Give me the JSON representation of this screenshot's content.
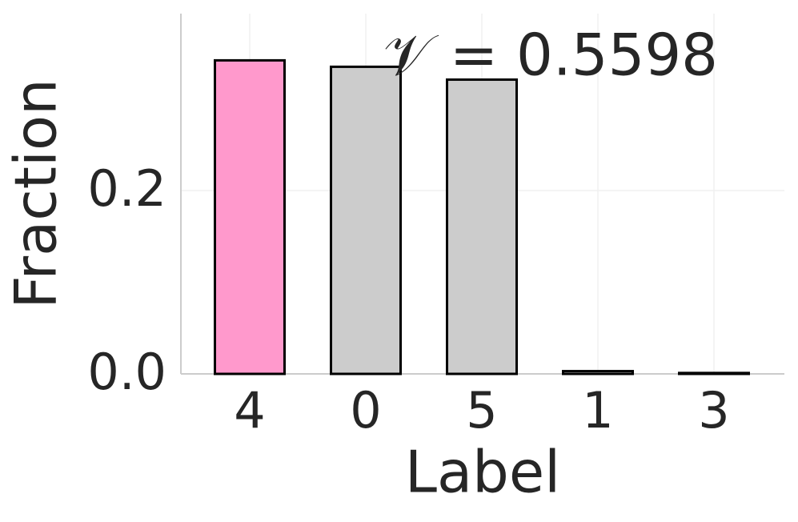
{
  "chart_data": {
    "type": "bar",
    "x_label": "Label",
    "y_label": "Fraction",
    "annotation": "𝒱 = 0.5598",
    "categories": [
      "4",
      "0",
      "5",
      "1",
      "3"
    ],
    "values": [
      0.342,
      0.335,
      0.321,
      0.003,
      0.001
    ],
    "colors": [
      "#ff99cc",
      "#cccccc",
      "#cccccc",
      "#cccccc",
      "#cccccc"
    ],
    "ylim": [
      0,
      0.393
    ],
    "yticks": [
      {
        "value": 0,
        "label": "0.0"
      },
      {
        "value": 0.2,
        "label": "0.2"
      }
    ],
    "grid": true
  }
}
